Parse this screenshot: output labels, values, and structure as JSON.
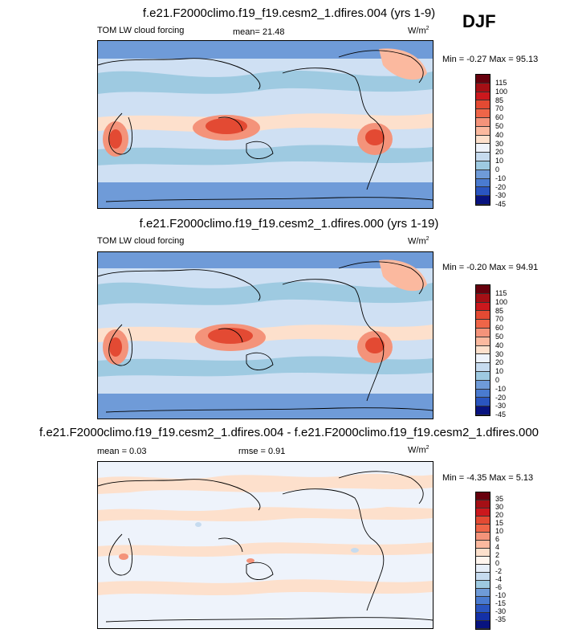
{
  "season": "DJF",
  "panels": [
    {
      "title": "f.e21.F2000climo.f19_f19.cesm2_1.dfires.004 (yrs 1-9)",
      "left_label": "TOM LW cloud forcing",
      "center_label": "mean=  21.48",
      "units": "W/m",
      "units_sup": "2",
      "minmax": "Min =  -0.27 Max =  95.13",
      "levels": [
        "115",
        "100",
        "85",
        "70",
        "60",
        "50",
        "40",
        "30",
        "20",
        "10",
        "0",
        "-10",
        "-20",
        "-30",
        "-45"
      ],
      "colors": [
        "#67000d",
        "#a50f15",
        "#cb181d",
        "#e34a33",
        "#ef6548",
        "#f4937a",
        "#fbb99f",
        "#fde0cc",
        "#eef3fb",
        "#c6dbef",
        "#9ecae1",
        "#6f9bd8",
        "#4a7bd0",
        "#2a55c0",
        "#1431a8",
        "#08137f"
      ]
    },
    {
      "title": "f.e21.F2000climo.f19_f19.cesm2_1.dfires.000 (yrs 1-19)",
      "left_label": "TOM LW cloud forcing",
      "center_label": "",
      "units": "W/m",
      "units_sup": "2",
      "minmax": "Min =  -0.20 Max =  94.91",
      "levels": [
        "115",
        "100",
        "85",
        "70",
        "60",
        "50",
        "40",
        "30",
        "20",
        "10",
        "0",
        "-10",
        "-20",
        "-30",
        "-45"
      ],
      "colors": [
        "#67000d",
        "#a50f15",
        "#cb181d",
        "#e34a33",
        "#ef6548",
        "#f4937a",
        "#fbb99f",
        "#fde0cc",
        "#eef3fb",
        "#c6dbef",
        "#9ecae1",
        "#6f9bd8",
        "#4a7bd0",
        "#2a55c0",
        "#1431a8",
        "#08137f"
      ]
    },
    {
      "title": "f.e21.F2000climo.f19_f19.cesm2_1.dfires.004 - f.e21.F2000climo.f19_f19.cesm2_1.dfires.000",
      "left_label": "mean =  0.03",
      "center_label": "rmse =  0.91",
      "units": "W/m",
      "units_sup": "2",
      "minmax": "Min =  -4.35 Max =  5.13",
      "levels": [
        "35",
        "30",
        "20",
        "15",
        "10",
        "6",
        "4",
        "2",
        "0",
        "-2",
        "-4",
        "-6",
        "-10",
        "-15",
        "-30",
        "-35"
      ],
      "colors": [
        "#67000d",
        "#a50f15",
        "#cb181d",
        "#e34a33",
        "#ef6548",
        "#f4937a",
        "#fbb99f",
        "#fde0cc",
        "#fff5ee",
        "#e6eef8",
        "#c6dbef",
        "#9ecae1",
        "#6f9bd8",
        "#4a7bd0",
        "#2a55c0",
        "#1431a8",
        "#08137f"
      ]
    }
  ],
  "chart_data": [
    {
      "type": "heatmap",
      "title": "f.e21.F2000climo.f19_f19.cesm2_1.dfires.004 (yrs 1-9)",
      "variable": "TOM LW cloud forcing",
      "units": "W/m2",
      "mean": 21.48,
      "min": -0.27,
      "max": 95.13,
      "colorbar_levels": [
        115,
        100,
        85,
        70,
        60,
        50,
        40,
        30,
        20,
        10,
        0,
        -10,
        -20,
        -30,
        -45
      ]
    },
    {
      "type": "heatmap",
      "title": "f.e21.F2000climo.f19_f19.cesm2_1.dfires.000 (yrs 1-19)",
      "variable": "TOM LW cloud forcing",
      "units": "W/m2",
      "min": -0.2,
      "max": 94.91,
      "colorbar_levels": [
        115,
        100,
        85,
        70,
        60,
        50,
        40,
        30,
        20,
        10,
        0,
        -10,
        -20,
        -30,
        -45
      ]
    },
    {
      "type": "heatmap",
      "title": "f.e21.F2000climo.f19_f19.cesm2_1.dfires.004 - f.e21.F2000climo.f19_f19.cesm2_1.dfires.000",
      "units": "W/m2",
      "mean": 0.03,
      "rmse": 0.91,
      "min": -4.35,
      "max": 5.13,
      "colorbar_levels": [
        35,
        30,
        20,
        15,
        10,
        6,
        4,
        2,
        0,
        -2,
        -4,
        -6,
        -10,
        -15,
        -30,
        -35
      ]
    }
  ]
}
